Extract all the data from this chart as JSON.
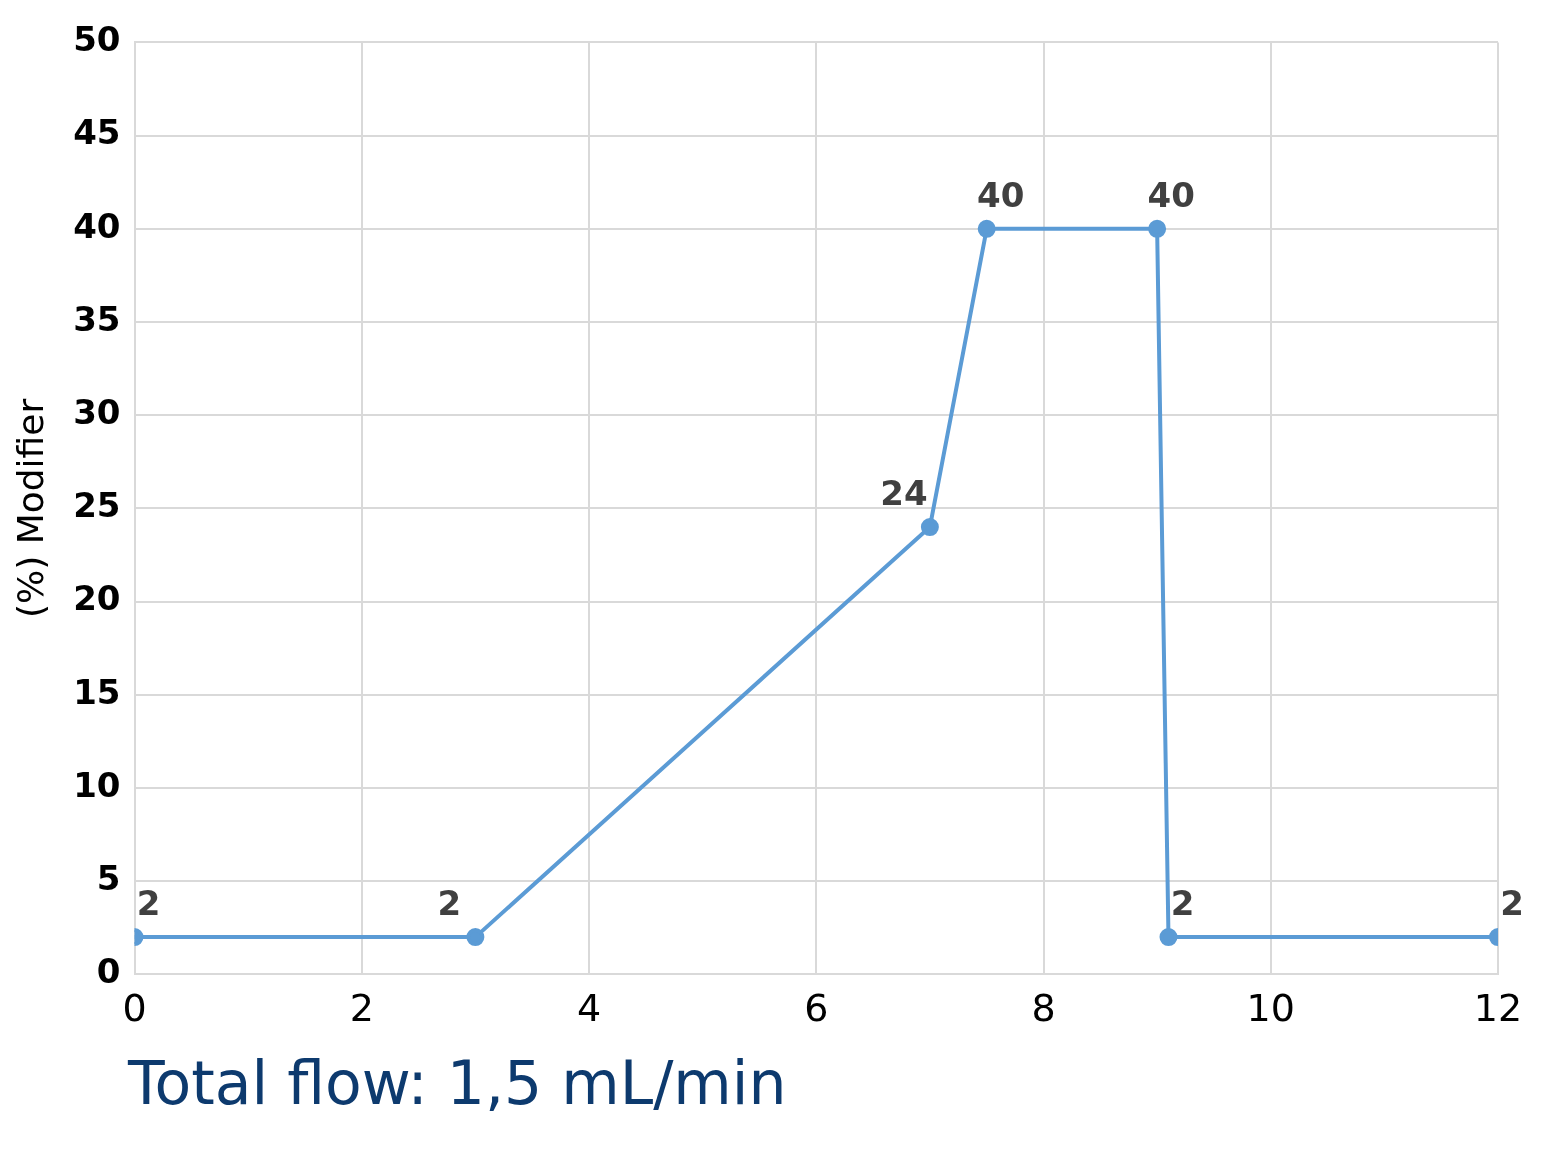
{
  "chart_data": {
    "type": "line",
    "ylabel": "(%) Modifier",
    "x": [
      0,
      3,
      7,
      7.5,
      9,
      9.1,
      12
    ],
    "series": [
      {
        "color": "#5b9bd5",
        "values": [
          2,
          2,
          24,
          40,
          40,
          2,
          2
        ]
      }
    ],
    "xlim": [
      0,
      12
    ],
    "xticks": [
      0,
      2,
      4,
      6,
      8,
      10,
      12
    ],
    "ylim": [
      0,
      50
    ],
    "yticks": [
      0,
      5,
      10,
      15,
      20,
      25,
      30,
      35,
      40,
      45,
      50
    ],
    "grid": true,
    "legend": false,
    "marker": "circle",
    "line_style": "solid",
    "data_labels": true,
    "annotations": [
      "Total flow: 1,5 mL/min"
    ]
  }
}
